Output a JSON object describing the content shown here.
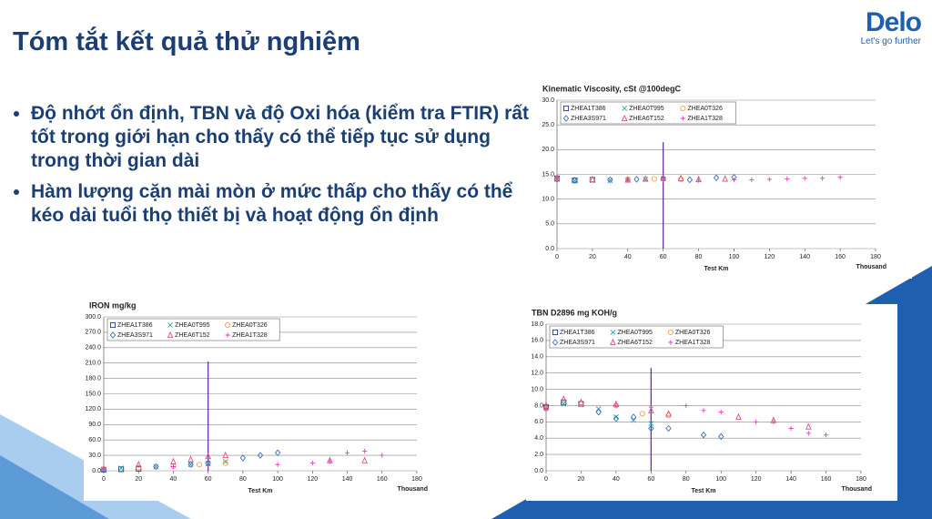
{
  "title": "Tóm tắt kết quả thử nghiệm",
  "logo": {
    "name": "Delo",
    "tagline": "Let's go further"
  },
  "bullets": [
    "Độ nhớt ổn định, TBN và độ Oxi hóa (kiểm tra FTIR) rất tốt trong giới hạn cho thấy có thể tiếp tục sử dụng trong thời gian dài",
    "Hàm lượng cặn mài mòn ở mức thấp cho thấy có thể kéo dài tuổi thọ thiết bị và hoạt động ổn định"
  ],
  "chart_data": [
    {
      "type": "scatter",
      "title": "Kinematic Viscosity, cSt @100degC",
      "x_label": "Test Km",
      "x_unit": "Thousand",
      "xlim": [
        0,
        180
      ],
      "xticks": [
        0,
        20,
        40,
        60,
        80,
        100,
        120,
        140,
        160,
        180
      ],
      "ylim": [
        0,
        30
      ],
      "yticks": [
        {
          "value": 0,
          "label": "0.0"
        },
        {
          "value": 5,
          "label": "5.0"
        },
        {
          "value": 10,
          "label": "10.0"
        },
        {
          "value": 15,
          "label": "15.0"
        },
        {
          "value": 20,
          "label": "20.0"
        },
        {
          "value": 25,
          "label": "25.0"
        },
        {
          "value": 30,
          "label": "30.0"
        }
      ],
      "grid": true,
      "vertical_line": {
        "x": 60,
        "top": 21.5,
        "color": "#7030a0"
      },
      "series": [
        {
          "name": "ZHEA1T386",
          "marker": "square",
          "color": "#1f3b8f",
          "x": [
            0,
            10,
            20
          ],
          "values": [
            14.2,
            13.8,
            13.9
          ]
        },
        {
          "name": "ZHEA0T995",
          "marker": "x",
          "color": "#2aa6a0",
          "x": [
            0,
            10,
            30,
            40,
            50,
            60
          ],
          "values": [
            14,
            13.7,
            13.8,
            13.9,
            14,
            14.1
          ]
        },
        {
          "name": "ZHEA0T326",
          "marker": "circle",
          "color": "#f0a050",
          "x": [
            0,
            20,
            40,
            55,
            70
          ],
          "values": [
            14.1,
            13.9,
            14,
            14.1,
            14
          ]
        },
        {
          "name": "ZHEA3S971",
          "marker": "diamond",
          "color": "#3b6fc4",
          "x": [
            0,
            10,
            30,
            45,
            60,
            75,
            90,
            100
          ],
          "values": [
            14,
            13.8,
            13.9,
            14,
            14.2,
            13.9,
            14.3,
            14.4
          ]
        },
        {
          "name": "ZHEA6T152",
          "marker": "triangle",
          "color": "#e0507a",
          "x": [
            0,
            20,
            40,
            50,
            60,
            70,
            80,
            95
          ],
          "values": [
            14.3,
            14,
            13.9,
            14.1,
            14.3,
            14.2,
            14,
            14.1
          ]
        },
        {
          "name": "ZHEA1T328",
          "marker": "plus",
          "color": "#e040c0",
          "x": [
            0,
            40,
            60,
            80,
            100,
            110,
            120,
            130,
            140,
            150,
            160
          ],
          "values": [
            14.2,
            13.8,
            13.9,
            13.8,
            13.9,
            13.9,
            14,
            14.1,
            14.2,
            14.2,
            14.4
          ]
        }
      ]
    },
    {
      "type": "scatter",
      "title": "IRON mg/kg",
      "x_label": "Test Km",
      "x_unit": "Thousand",
      "xlim": [
        0,
        180
      ],
      "xticks": [
        0,
        20,
        40,
        60,
        80,
        100,
        120,
        140,
        160,
        180
      ],
      "ylim": [
        0,
        300
      ],
      "yticks": [
        {
          "value": 0,
          "label": "0.0"
        },
        {
          "value": 30,
          "label": "30.0"
        },
        {
          "value": 60,
          "label": "60.0"
        },
        {
          "value": 90,
          "label": "90.0"
        },
        {
          "value": 120,
          "label": "120.0"
        },
        {
          "value": 150,
          "label": "150.0"
        },
        {
          "value": 180,
          "label": "180.0"
        },
        {
          "value": 210,
          "label": "210.0"
        },
        {
          "value": 240,
          "label": "240.0"
        },
        {
          "value": 270,
          "label": "270.0"
        },
        {
          "value": 300,
          "label": "300.0"
        }
      ],
      "grid": true,
      "vertical_line": {
        "x": 60,
        "top": 213,
        "color": "#7030a0"
      },
      "series": [
        {
          "name": "ZHEA1T386",
          "marker": "square",
          "color": "#1f3b8f",
          "x": [
            0,
            10,
            20
          ],
          "values": [
            2,
            3,
            4
          ]
        },
        {
          "name": "ZHEA0T995",
          "marker": "x",
          "color": "#2aa6a0",
          "x": [
            0,
            10,
            30,
            50,
            60,
            70
          ],
          "values": [
            2,
            5,
            8,
            12,
            15,
            18
          ]
        },
        {
          "name": "ZHEA0T326",
          "marker": "circle",
          "color": "#f0a050",
          "x": [
            0,
            20,
            40,
            55,
            70
          ],
          "values": [
            3,
            6,
            9,
            12,
            15
          ]
        },
        {
          "name": "ZHEA3S971",
          "marker": "diamond",
          "color": "#3b6fc4",
          "x": [
            0,
            30,
            50,
            60,
            80,
            90,
            100
          ],
          "values": [
            2,
            8,
            12,
            15,
            25,
            30,
            35
          ]
        },
        {
          "name": "ZHEA6T152",
          "marker": "triangle",
          "color": "#e0507a",
          "x": [
            0,
            20,
            40,
            50,
            60,
            70,
            130,
            150
          ],
          "values": [
            4,
            12,
            18,
            22,
            28,
            30,
            20,
            20
          ]
        },
        {
          "name": "ZHEA1T328",
          "marker": "plus",
          "color": "#e040c0",
          "x": [
            0,
            40,
            60,
            100,
            120,
            130,
            140,
            150,
            160
          ],
          "values": [
            3,
            8,
            10,
            12,
            15,
            18,
            35,
            38,
            30
          ]
        }
      ]
    },
    {
      "type": "scatter",
      "title": "TBN D2896 mg KOH/g",
      "x_label": "Test Km",
      "x_unit": "Thousand",
      "xlim": [
        0,
        180
      ],
      "xticks": [
        0,
        20,
        40,
        60,
        80,
        100,
        120,
        140,
        160,
        180
      ],
      "ylim": [
        0,
        18
      ],
      "yticks": [
        {
          "value": 0,
          "label": "0.0"
        },
        {
          "value": 2,
          "label": "2.0"
        },
        {
          "value": 4,
          "label": "4.0"
        },
        {
          "value": 6,
          "label": "6.0"
        },
        {
          "value": 8,
          "label": "8.0"
        },
        {
          "value": 10,
          "label": "10.0"
        },
        {
          "value": 12,
          "label": "12.0"
        },
        {
          "value": 14,
          "label": "14.0"
        },
        {
          "value": 16,
          "label": "16.0"
        },
        {
          "value": 18,
          "label": "18.0"
        }
      ],
      "grid": true,
      "vertical_line": {
        "x": 60,
        "top": 12.6,
        "color": "#7030a0"
      },
      "series": [
        {
          "name": "ZHEA1T386",
          "marker": "square",
          "color": "#1f3b8f",
          "x": [
            0,
            10,
            20
          ],
          "values": [
            7.8,
            8.4,
            8.2
          ]
        },
        {
          "name": "ZHEA0T995",
          "marker": "x",
          "color": "#2aa6a0",
          "x": [
            10,
            30,
            40,
            50,
            60
          ],
          "values": [
            8.2,
            7.6,
            6.6,
            6.2,
            5.8
          ]
        },
        {
          "name": "ZHEA0T326",
          "marker": "circle",
          "color": "#f0a050",
          "x": [
            0,
            20,
            40,
            55,
            70
          ],
          "values": [
            7.6,
            8.2,
            8,
            7,
            6.8
          ]
        },
        {
          "name": "ZHEA3S971",
          "marker": "diamond",
          "color": "#3b6fc4",
          "x": [
            0,
            30,
            40,
            50,
            60,
            70,
            90,
            100
          ],
          "values": [
            7.8,
            7.2,
            6.4,
            6.6,
            5.2,
            5.2,
            4.4,
            4.2
          ]
        },
        {
          "name": "ZHEA6T152",
          "marker": "triangle",
          "color": "#e0507a",
          "x": [
            0,
            10,
            20,
            40,
            60,
            70,
            110,
            130,
            150
          ],
          "values": [
            8,
            8.8,
            8.4,
            8.2,
            7.4,
            7,
            6.6,
            6.2,
            5.4
          ]
        },
        {
          "name": "ZHEA1T328",
          "marker": "plus",
          "color": "#e040c0",
          "x": [
            0,
            40,
            60,
            80,
            90,
            100,
            120,
            130,
            140,
            150,
            160
          ],
          "values": [
            7.6,
            8,
            7.8,
            8,
            7.4,
            7.2,
            6,
            6,
            5.2,
            4.6,
            4.4
          ]
        }
      ]
    }
  ]
}
